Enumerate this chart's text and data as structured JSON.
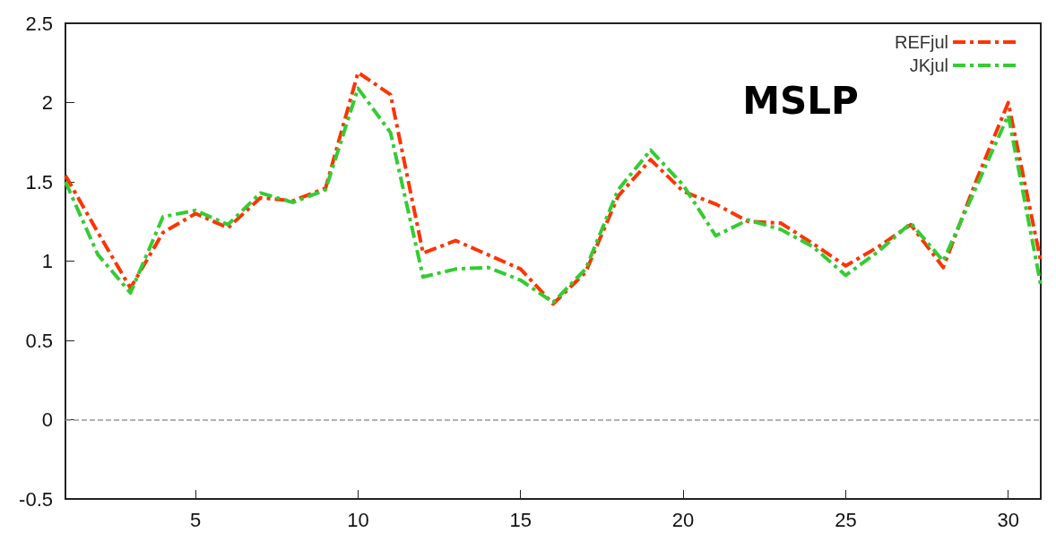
{
  "chart_data": {
    "type": "line",
    "title": "MSLP",
    "x": [
      1,
      2,
      3,
      4,
      5,
      6,
      7,
      8,
      9,
      10,
      11,
      12,
      13,
      14,
      15,
      16,
      17,
      18,
      19,
      20,
      21,
      22,
      23,
      24,
      25,
      26,
      27,
      28,
      29,
      30,
      31
    ],
    "series": [
      {
        "name": "REFjul",
        "color": "#ff3300",
        "values": [
          1.54,
          1.18,
          0.83,
          1.18,
          1.3,
          1.21,
          1.4,
          1.38,
          1.46,
          2.19,
          2.05,
          1.05,
          1.13,
          1.04,
          0.95,
          0.73,
          0.93,
          1.41,
          1.64,
          1.44,
          1.36,
          1.25,
          1.24,
          1.11,
          0.97,
          1.09,
          1.23,
          0.96,
          1.5,
          2.0,
          1.0
        ]
      },
      {
        "name": "JKjul",
        "color": "#33cc33",
        "values": [
          1.5,
          1.04,
          0.8,
          1.28,
          1.32,
          1.23,
          1.43,
          1.37,
          1.45,
          2.09,
          1.81,
          0.9,
          0.95,
          0.96,
          0.88,
          0.74,
          0.95,
          1.45,
          1.7,
          1.48,
          1.16,
          1.26,
          1.2,
          1.09,
          0.91,
          1.06,
          1.24,
          1.0,
          1.46,
          1.92,
          0.85
        ]
      }
    ],
    "xlim": [
      1,
      31
    ],
    "xticks": [
      5,
      10,
      15,
      20,
      25,
      30
    ],
    "ylim": [
      -0.5,
      2.5
    ],
    "yticks": [
      -0.5,
      0,
      0.5,
      1,
      1.5,
      2,
      2.5
    ],
    "ref_lines": [
      {
        "axis": "y",
        "value": 0,
        "color": "#999999",
        "line_style": "dashed"
      }
    ],
    "grid": false,
    "legend": "top right",
    "marker": "none",
    "line_style": "dashed"
  }
}
